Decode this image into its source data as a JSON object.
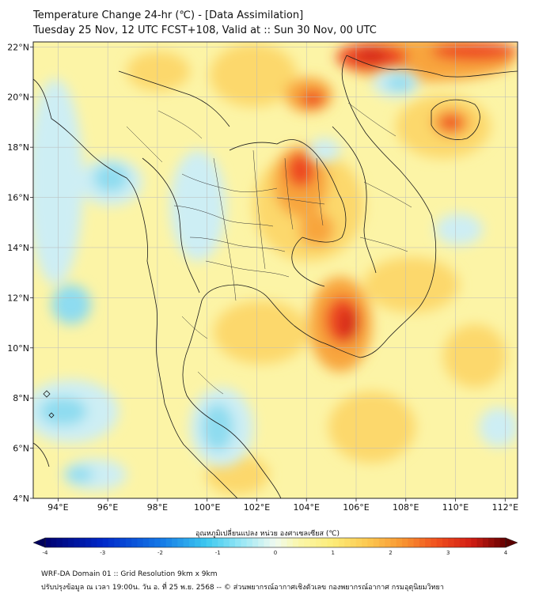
{
  "header": {
    "title_line1": "Temperature Change 24-hr (℃) - [Data Assimilation]",
    "title_line2": "Tuesday 25 Nov, 12 UTC FCST+108, Valid at :: Sun 30 Nov, 00 UTC"
  },
  "map": {
    "lon_labels": [
      "94°E",
      "96°E",
      "98°E",
      "100°E",
      "102°E",
      "104°E",
      "106°E",
      "108°E",
      "110°E",
      "112°E"
    ],
    "lat_labels": [
      "22°N",
      "20°N",
      "18°N",
      "16°N",
      "14°N",
      "12°N",
      "10°N",
      "8°N",
      "6°N",
      "4°N"
    ],
    "colors": {
      "background": "#fcf4a6",
      "warm_light": "#fcd86c",
      "warm_mid": "#f8a53c",
      "warm_strong": "#ee4a20",
      "hot": "#d62a1a",
      "cool_light": "#cdeef4",
      "cool_mid": "#8edcf0",
      "border": "#1a1a1a"
    }
  },
  "colorbar": {
    "label": "อุณหภูมิเปลี่ยนแปลง หน่วย องศาเซลเซียส (℃)",
    "tick_labels": [
      "-4",
      "-3",
      "-2",
      "-1",
      "0",
      "1",
      "2",
      "3",
      "4"
    ]
  },
  "footer": {
    "line1": "WRF-DA Domain 01 :: Grid Resolution 9km x 9km",
    "line2": "ปรับปรุงข้อมูล ณ เวลา 19:00น. วัน อ. ที่ 25 พ.ย. 2568 -- © ส่วนพยากรณ์อากาศเชิงตัวเลข กองพยากรณ์อากาศ กรมอุตุนิยมวิทยา"
  }
}
